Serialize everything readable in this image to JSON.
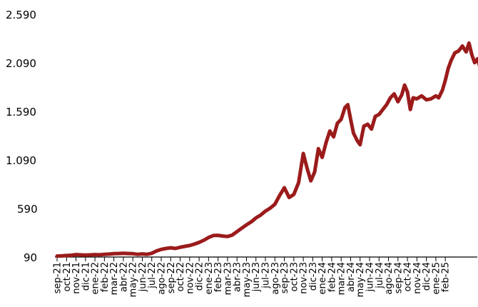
{
  "chart_data": {
    "type": "line",
    "title": "",
    "xlabel": "",
    "ylabel": "",
    "ylim": [
      90,
      2590
    ],
    "yticks": [
      "2.590",
      "2.090",
      "1.590",
      "1.090",
      "590",
      "90"
    ],
    "ytick_values": [
      2590,
      2090,
      1590,
      1090,
      590,
      90
    ],
    "x_categories": [
      "sep-21",
      "oct-21",
      "nov-21",
      "dic-21",
      "ene-22",
      "feb-22",
      "mar-22",
      "abr-22",
      "may-22",
      "jun-22",
      "jul-22",
      "ago-22",
      "sep-22",
      "oct-22",
      "nov-22",
      "dic-22",
      "ene-23",
      "feb-23",
      "mar-23",
      "abr-23",
      "may-23",
      "jun-23",
      "jul-23",
      "ago-23",
      "sep-23",
      "oct-23",
      "nov-23",
      "dic-23",
      "ene-24",
      "feb-24",
      "mar-24",
      "abr-24",
      "may-24",
      "jun-24",
      "jul-24",
      "ago-24",
      "sep-24",
      "oct-24",
      "nov-24",
      "dic-24",
      "ene-25",
      "feb-25"
    ],
    "grid": false,
    "legend": "none",
    "line_color": "#9b1b1b",
    "series": [
      {
        "points": [
          [
            0,
            100
          ],
          [
            0.5,
            102
          ],
          [
            1,
            105
          ],
          [
            1.5,
            108
          ],
          [
            2,
            115
          ],
          [
            2.5,
            112
          ],
          [
            3,
            110
          ],
          [
            3.5,
            112
          ],
          [
            4,
            115
          ],
          [
            4.5,
            113
          ],
          [
            5,
            118
          ],
          [
            5.5,
            120
          ],
          [
            6,
            124
          ],
          [
            6.5,
            126
          ],
          [
            7,
            128
          ],
          [
            7.5,
            126
          ],
          [
            8,
            124
          ],
          [
            8.5,
            118
          ],
          [
            9,
            122
          ],
          [
            9.5,
            118
          ],
          [
            10,
            128
          ],
          [
            10.5,
            152
          ],
          [
            11,
            168
          ],
          [
            11.5,
            178
          ],
          [
            12,
            184
          ],
          [
            12.5,
            178
          ],
          [
            13,
            190
          ],
          [
            13.5,
            200
          ],
          [
            14,
            208
          ],
          [
            14.5,
            222
          ],
          [
            15,
            240
          ],
          [
            15.5,
            262
          ],
          [
            16,
            290
          ],
          [
            16.5,
            310
          ],
          [
            17,
            312
          ],
          [
            17.5,
            305
          ],
          [
            18,
            300
          ],
          [
            18.5,
            315
          ],
          [
            19,
            350
          ],
          [
            19.5,
            385
          ],
          [
            20,
            420
          ],
          [
            20.5,
            450
          ],
          [
            21,
            490
          ],
          [
            21.5,
            520
          ],
          [
            22,
            560
          ],
          [
            22.5,
            590
          ],
          [
            23,
            630
          ],
          [
            23.5,
            720
          ],
          [
            24,
            800
          ],
          [
            24.5,
            700
          ],
          [
            25,
            730
          ],
          [
            25.5,
            850
          ],
          [
            26,
            1150
          ],
          [
            26.4,
            1000
          ],
          [
            26.8,
            870
          ],
          [
            27.2,
            960
          ],
          [
            27.6,
            1200
          ],
          [
            28,
            1110
          ],
          [
            28.4,
            1260
          ],
          [
            28.8,
            1380
          ],
          [
            29.2,
            1320
          ],
          [
            29.6,
            1460
          ],
          [
            30,
            1500
          ],
          [
            30.4,
            1620
          ],
          [
            30.7,
            1650
          ],
          [
            31,
            1500
          ],
          [
            31.3,
            1360
          ],
          [
            31.7,
            1280
          ],
          [
            32,
            1240
          ],
          [
            32.4,
            1430
          ],
          [
            32.8,
            1450
          ],
          [
            33.2,
            1400
          ],
          [
            33.6,
            1530
          ],
          [
            34,
            1550
          ],
          [
            34.4,
            1600
          ],
          [
            34.8,
            1650
          ],
          [
            35.2,
            1720
          ],
          [
            35.6,
            1760
          ],
          [
            36,
            1680
          ],
          [
            36.4,
            1750
          ],
          [
            36.7,
            1850
          ],
          [
            37,
            1780
          ],
          [
            37.3,
            1600
          ],
          [
            37.6,
            1720
          ],
          [
            38,
            1710
          ],
          [
            38.5,
            1740
          ],
          [
            39,
            1700
          ],
          [
            39.5,
            1710
          ],
          [
            40,
            1740
          ],
          [
            40.3,
            1720
          ],
          [
            40.7,
            1800
          ],
          [
            41,
            1900
          ],
          [
            41.3,
            2020
          ],
          [
            41.6,
            2100
          ],
          [
            42,
            2180
          ],
          [
            42.4,
            2200
          ],
          [
            42.8,
            2250
          ],
          [
            43.2,
            2190
          ],
          [
            43.5,
            2280
          ],
          [
            43.8,
            2160
          ],
          [
            44.1,
            2080
          ],
          [
            44.4,
            2120
          ],
          [
            44.7,
            2020
          ],
          [
            45,
            1920
          ]
        ]
      }
    ]
  }
}
